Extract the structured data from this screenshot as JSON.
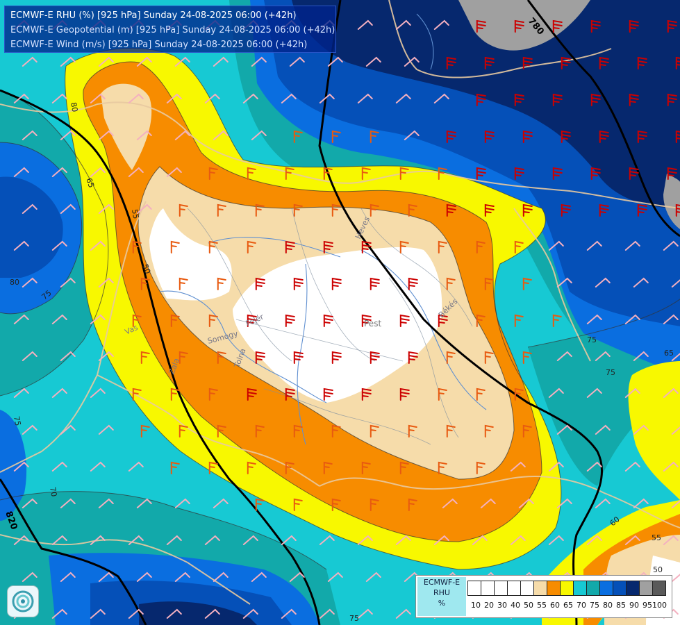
{
  "title": {
    "lines": [
      "ECMWF-E RHU (%) [925 hPa] Sunday 24-08-2025 06:00 (+42h)",
      "ECMWF-E Geopotential (m) [925 hPa] Sunday 24-08-2025 06:00 (+42h)",
      "ECMWF-E Wind (m/s) [925 hPa] Sunday 24-08-2025 06:00 (+42h)"
    ]
  },
  "legend": {
    "lines": [
      "ECMWF-E",
      "RHU",
      "%"
    ],
    "ticks": [
      "10",
      "20",
      "30",
      "40",
      "50",
      "55",
      "60",
      "65",
      "70",
      "75",
      "80",
      "85",
      "90",
      "95",
      "100"
    ],
    "colors": [
      "#ffffff",
      "#ffffff",
      "#ffffff",
      "#ffffff",
      "#ffffff",
      "#f6dcaa",
      "#f78c00",
      "#f8f800",
      "#17c9d3",
      "#12a9aa",
      "#0a6ee0",
      "#0550b8",
      "#06286e",
      "#a0a0a0",
      "#5a5a5a"
    ]
  },
  "colors": {
    "rh_50": "#ffffff",
    "rh_55": "#f6dcaa",
    "rh_60": "#f78c00",
    "rh_65": "#f8f800",
    "rh_70": "#17c9d3",
    "rh_75": "#12a9aa",
    "rh_80": "#0a6ee0",
    "rh_85": "#0550b8",
    "rh_90": "#06286e",
    "rh_95": "#a0a0a0",
    "barb_strong": "#cc0000",
    "barb_medium": "#e85a10",
    "barb_weak": "#f4b0c0",
    "border": "#e8c9a0",
    "river": "#5f8fd0",
    "geopotential": "#000000"
  },
  "map_labels": {
    "geopotential": [
      "780",
      "820",
      "800"
    ],
    "rhu": [
      "80",
      "65",
      "55",
      "50",
      "80",
      "75",
      "75",
      "70",
      "75",
      "75",
      "65",
      "60",
      "55",
      "50",
      "75"
    ],
    "regions": [
      "Pest",
      "Somogy",
      "Fejér",
      "Tolna",
      "Vas",
      "Zala",
      "Heves",
      "Békés"
    ]
  },
  "logo": {
    "icon": "ecmwf-swirl-icon"
  }
}
